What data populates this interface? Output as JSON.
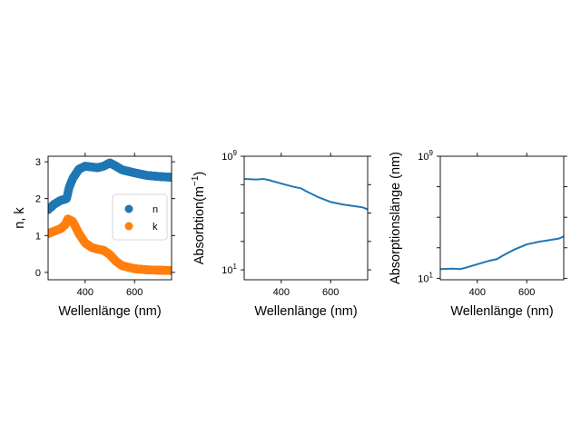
{
  "chart_data": [
    {
      "type": "scatter",
      "xlabel": "Wellenlänge (nm)",
      "ylabel": "n, k",
      "xlim": [
        250,
        750
      ],
      "ylim": [
        -0.2,
        3.15
      ],
      "xticks": [
        "400",
        "600"
      ],
      "yticks": [
        "0",
        "1",
        "2",
        "3"
      ],
      "legend": "center-right",
      "series": [
        {
          "name": "n",
          "color": "#1f77b4",
          "x": [
            250,
            275,
            300,
            325,
            335,
            350,
            375,
            400,
            425,
            450,
            475,
            500,
            525,
            550,
            600,
            650,
            700,
            750
          ],
          "y": [
            1.7,
            1.85,
            1.95,
            2.0,
            2.3,
            2.55,
            2.8,
            2.88,
            2.86,
            2.84,
            2.88,
            2.97,
            2.88,
            2.78,
            2.7,
            2.63,
            2.6,
            2.58
          ]
        },
        {
          "name": "k",
          "color": "#ff7f0e",
          "x": [
            250,
            275,
            300,
            320,
            330,
            350,
            375,
            400,
            425,
            450,
            475,
            500,
            525,
            550,
            600,
            650,
            700,
            750
          ],
          "y": [
            1.05,
            1.12,
            1.18,
            1.3,
            1.45,
            1.38,
            1.05,
            0.8,
            0.68,
            0.63,
            0.6,
            0.48,
            0.3,
            0.18,
            0.1,
            0.07,
            0.06,
            0.05
          ]
        }
      ]
    },
    {
      "type": "line",
      "xlabel": "Wellenlänge (nm)",
      "ylabel": "Absorbtion(m",
      "ylabel_sup": "−1",
      "ylabel_end": ")",
      "yscale": "log",
      "xlim": [
        250,
        750
      ],
      "ylim": [
        2,
        1000000000
      ],
      "xticks": [
        "400",
        "600"
      ],
      "yticks": [
        {
          "base": "10",
          "exp": "9"
        },
        {
          "base": "10",
          "exp": "1"
        }
      ],
      "series": [
        {
          "color": "#1f77b4",
          "x": [
            250,
            300,
            330,
            350,
            400,
            450,
            480,
            500,
            550,
            600,
            650,
            700,
            730,
            750
          ],
          "y": [
            25000000,
            23000000,
            25000000,
            21000000,
            12000000,
            7000000,
            5500000,
            3500000,
            1300000,
            600000,
            400000,
            300000,
            250000,
            180000
          ]
        }
      ]
    },
    {
      "type": "line",
      "xlabel": "Wellenlänge (nm)",
      "ylabel": "Absorptionslänge (nm)",
      "yscale": "log",
      "xlim": [
        250,
        750
      ],
      "ylim": [
        8,
        1000000000
      ],
      "xticks": [
        "400",
        "600"
      ],
      "yticks": [
        {
          "base": "10",
          "exp": "9"
        },
        {
          "base": "10",
          "exp": "1"
        }
      ],
      "series": [
        {
          "color": "#1f77b4",
          "x": [
            250,
            300,
            330,
            350,
            400,
            450,
            480,
            500,
            550,
            600,
            650,
            700,
            730,
            750
          ],
          "y": [
            40,
            43,
            40,
            48,
            83,
            143,
            182,
            286,
            770,
            1670,
            2500,
            3330,
            4000,
            5560
          ]
        }
      ]
    }
  ]
}
